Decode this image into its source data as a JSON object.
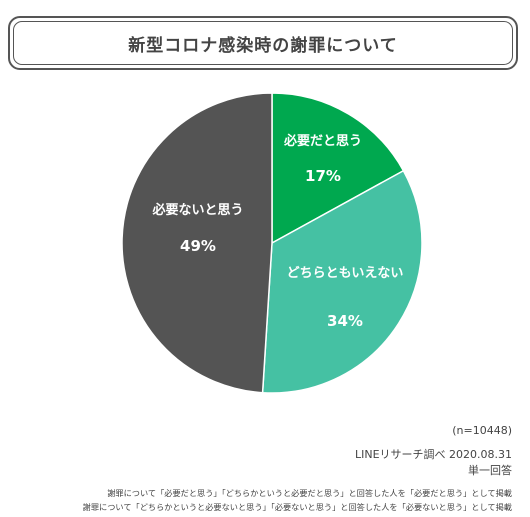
{
  "chart_data": {
    "type": "pie",
    "title": "新型コロナ感染時の謝罪について",
    "start_angle_deg": 0,
    "direction": "clockwise",
    "slices": [
      {
        "label": "必要だと思う",
        "value": 17,
        "value_label": "17%",
        "color": "#00a84f"
      },
      {
        "label": "どちらともいえない",
        "value": 34,
        "value_label": "34%",
        "color": "#45c1a3"
      },
      {
        "label": "必要ないと思う",
        "value": 49,
        "value_label": "49%",
        "color": "#545454"
      }
    ]
  },
  "notes": {
    "sample": "(n=10448)",
    "source": "LINEリサーチ調べ 2020.08.31",
    "answer_type": "単一回答",
    "footnote_1": "謝罪について「必要だと思う」「どちらかというと必要だと思う」と回答した人を「必要だと思う」として掲載",
    "footnote_2": "謝罪について「どちらかというと必要ないと思う」「必要ないと思う」と回答した人を「必要ないと思う」として掲載"
  }
}
